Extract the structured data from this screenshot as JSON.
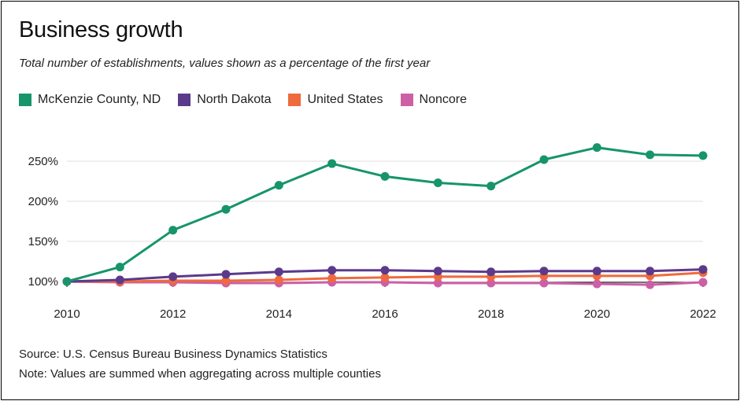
{
  "chart_data": {
    "type": "line",
    "title": "Business growth",
    "subtitle": "Total number of establishments, values shown as a percentage of the first year",
    "x": [
      2010,
      2011,
      2012,
      2013,
      2014,
      2015,
      2016,
      2017,
      2018,
      2019,
      2020,
      2021,
      2022
    ],
    "x_ticks": [
      "2010",
      "2012",
      "2014",
      "2016",
      "2018",
      "2020",
      "2022"
    ],
    "y_ticks": [
      "100%",
      "150%",
      "200%",
      "250%"
    ],
    "ylim": [
      100,
      270
    ],
    "grid": true,
    "legend_position": "top",
    "series": [
      {
        "name": "McKenzie County, ND",
        "color": "#16956a",
        "values": [
          100,
          118,
          164,
          190,
          220,
          247,
          231,
          223,
          219,
          252,
          267,
          258,
          257
        ]
      },
      {
        "name": "North Dakota",
        "color": "#5b3a8c",
        "values": [
          100,
          102,
          106,
          109,
          112,
          114,
          114,
          113,
          112,
          113,
          113,
          113,
          115
        ]
      },
      {
        "name": "United States",
        "color": "#ef6a3c",
        "values": [
          100,
          100,
          101,
          101,
          102,
          104,
          105,
          106,
          106,
          107,
          107,
          107,
          111
        ]
      },
      {
        "name": "Noncore",
        "color": "#cc5fa6",
        "values": [
          100,
          99,
          99,
          98,
          98,
          99,
          99,
          98,
          98,
          98,
          97,
          96,
          99
        ]
      }
    ],
    "draw_order": [
      3,
      2,
      1,
      0
    ]
  },
  "footer": {
    "source": "Source: U.S. Census Bureau Business Dynamics Statistics",
    "note": "Note: Values are summed when aggregating across multiple counties"
  }
}
